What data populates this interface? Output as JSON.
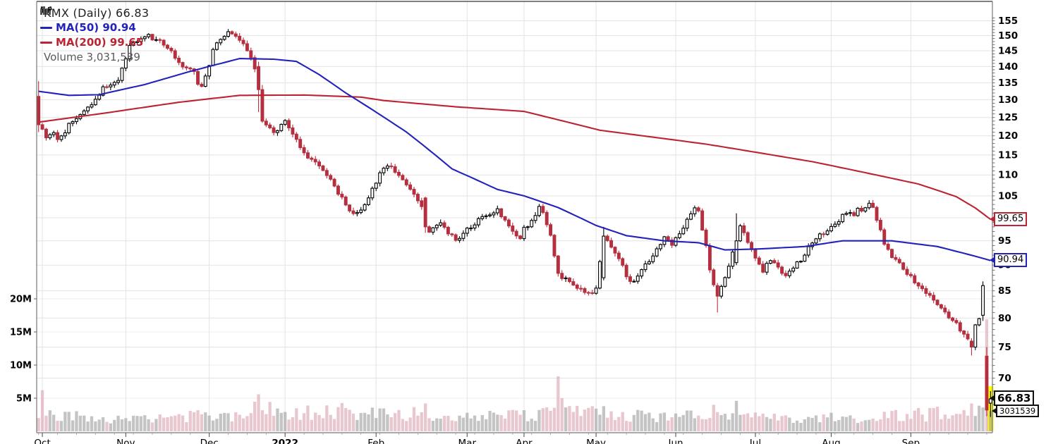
{
  "legend": {
    "title": "KMX (Daily) 66.83",
    "ma50": "MA(50) 90.94",
    "ma200": "MA(200) 99.65",
    "volume": "Volume 3,031,539"
  },
  "callouts": {
    "ma200": "99.65",
    "ma50": "90.94",
    "price": "66.83",
    "volume": "3031539"
  },
  "colors": {
    "up_candle": "#000000",
    "down_candle": "#b52f3f",
    "ma50": "#2323bb",
    "ma200": "#bb2433",
    "volume_up": "#a0a0a0",
    "volume_down": "#dba4b0",
    "grid": "#e3e3e3",
    "axis": "#777777",
    "highlight": "#ffff00",
    "background": "#ffffff"
  },
  "chart_data": {
    "type": "candlestick",
    "symbol": "KMX",
    "timeframe": "Daily",
    "last_price": 66.83,
    "ma50_last": 90.94,
    "ma200_last": 99.65,
    "last_volume": 3031539,
    "num_days": 252,
    "price_axis": {
      "scale": "log",
      "tick_labels": [
        155,
        150,
        145,
        140,
        135,
        130,
        125,
        120,
        115,
        110,
        105,
        95,
        90,
        85,
        80,
        75,
        70
      ],
      "grid_levels": [
        155,
        150,
        145,
        140,
        135,
        130,
        125,
        120,
        115,
        110,
        105,
        100,
        95,
        90,
        85,
        80,
        75,
        70
      ]
    },
    "volume_axis": {
      "tick_labels": [
        "20M",
        "15M",
        "10M",
        "5M"
      ],
      "levels_millions": [
        20,
        15,
        10,
        5
      ]
    },
    "x_axis": {
      "ticks": [
        {
          "label": "Oct",
          "i": 1,
          "bold": false
        },
        {
          "label": "Nov",
          "i": 23,
          "bold": false
        },
        {
          "label": "Dec",
          "i": 45,
          "bold": false
        },
        {
          "label": "2022",
          "i": 65,
          "bold": true
        },
        {
          "label": "Feb",
          "i": 89,
          "bold": false
        },
        {
          "label": "Mar",
          "i": 113,
          "bold": false
        },
        {
          "label": "Apr",
          "i": 128,
          "bold": false
        },
        {
          "label": "May",
          "i": 147,
          "bold": false
        },
        {
          "label": "Jun",
          "i": 168,
          "bold": false
        },
        {
          "label": "Jul",
          "i": 189,
          "bold": false
        },
        {
          "label": "Aug",
          "i": 209,
          "bold": false
        },
        {
          "label": "Sep",
          "i": 230,
          "bold": false
        }
      ]
    },
    "first_open": 131,
    "noise_seed": 11,
    "noise_pct": 0.55,
    "close_anchors": [
      [
        0,
        123
      ],
      [
        1,
        121.5
      ],
      [
        2,
        120
      ],
      [
        4,
        121
      ],
      [
        5,
        119.5
      ],
      [
        7,
        121
      ],
      [
        9,
        124.5
      ],
      [
        11,
        125.5
      ],
      [
        13,
        128
      ],
      [
        15,
        130.5
      ],
      [
        17,
        133.5
      ],
      [
        19,
        135
      ],
      [
        21,
        136
      ],
      [
        22,
        139
      ],
      [
        23,
        143
      ],
      [
        24,
        146
      ],
      [
        25,
        147.5
      ],
      [
        27,
        149
      ],
      [
        29,
        150
      ],
      [
        31,
        148.5
      ],
      [
        33,
        147
      ],
      [
        35,
        145
      ],
      [
        37,
        141
      ],
      [
        39,
        139.5
      ],
      [
        41,
        138
      ],
      [
        42,
        135
      ],
      [
        43,
        134.5
      ],
      [
        44,
        136.5
      ],
      [
        45,
        141
      ],
      [
        46,
        146
      ],
      [
        48,
        149
      ],
      [
        50,
        150.5
      ],
      [
        52,
        149.5
      ],
      [
        53,
        148
      ],
      [
        54,
        147
      ],
      [
        55,
        145
      ],
      [
        56,
        142.5
      ],
      [
        57,
        140
      ],
      [
        58,
        133
      ],
      [
        59,
        124
      ],
      [
        61,
        122
      ],
      [
        63,
        121
      ],
      [
        64,
        122.5
      ],
      [
        65,
        123.5
      ],
      [
        66,
        122
      ],
      [
        67,
        120.5
      ],
      [
        68,
        118.5
      ],
      [
        70,
        115.5
      ],
      [
        72,
        113.5
      ],
      [
        74,
        112
      ],
      [
        76,
        110
      ],
      [
        78,
        107
      ],
      [
        80,
        104.5
      ],
      [
        82,
        102
      ],
      [
        84,
        100.8
      ],
      [
        85,
        101.5
      ],
      [
        86,
        103
      ],
      [
        88,
        106.5
      ],
      [
        90,
        110
      ],
      [
        92,
        112.8
      ],
      [
        93,
        112
      ],
      [
        94,
        110.5
      ],
      [
        96,
        108.5
      ],
      [
        98,
        106.5
      ],
      [
        100,
        104
      ],
      [
        101,
        102
      ],
      [
        102,
        98
      ],
      [
        103,
        97
      ],
      [
        104,
        98
      ],
      [
        106,
        99
      ],
      [
        108,
        97
      ],
      [
        110,
        95.5
      ],
      [
        112,
        96.5
      ],
      [
        114,
        98
      ],
      [
        116,
        99.5
      ],
      [
        118,
        100.5
      ],
      [
        120,
        101
      ],
      [
        121,
        102
      ],
      [
        123,
        99.5
      ],
      [
        125,
        97.5
      ],
      [
        127,
        95.5
      ],
      [
        128,
        97.5
      ],
      [
        130,
        99
      ],
      [
        132,
        102.5
      ],
      [
        134,
        99
      ],
      [
        135,
        96
      ],
      [
        136,
        91.5
      ],
      [
        137,
        88.5
      ],
      [
        139,
        87
      ],
      [
        141,
        86
      ],
      [
        143,
        85
      ],
      [
        145,
        84.3
      ],
      [
        146,
        84.8
      ],
      [
        147,
        85.5
      ],
      [
        149,
        96
      ],
      [
        151,
        93.5
      ],
      [
        153,
        91
      ],
      [
        155,
        88
      ],
      [
        157,
        86.5
      ],
      [
        159,
        89
      ],
      [
        161,
        91
      ],
      [
        163,
        93
      ],
      [
        165,
        95.5
      ],
      [
        167,
        94.5
      ],
      [
        169,
        96
      ],
      [
        171,
        99.5
      ],
      [
        173,
        102
      ],
      [
        174,
        101
      ],
      [
        175,
        97
      ],
      [
        176,
        93.5
      ],
      [
        177,
        89.5
      ],
      [
        178,
        86
      ],
      [
        179,
        84
      ],
      [
        180,
        85.5
      ],
      [
        182,
        89.5
      ],
      [
        184,
        95
      ],
      [
        185,
        98.5
      ],
      [
        187,
        95
      ],
      [
        189,
        91.5
      ],
      [
        191,
        89
      ],
      [
        193,
        91
      ],
      [
        195,
        89.5
      ],
      [
        197,
        88
      ],
      [
        199,
        89.5
      ],
      [
        201,
        91
      ],
      [
        203,
        93.5
      ],
      [
        205,
        95.5
      ],
      [
        207,
        96.5
      ],
      [
        209,
        98
      ],
      [
        211,
        99.5
      ],
      [
        213,
        101
      ],
      [
        215,
        101
      ],
      [
        216,
        102
      ],
      [
        217,
        101
      ],
      [
        218,
        102.5
      ],
      [
        219,
        103
      ],
      [
        220,
        102.5
      ],
      [
        221,
        99.5
      ],
      [
        222,
        97
      ],
      [
        223,
        94
      ],
      [
        225,
        92
      ],
      [
        227,
        90
      ],
      [
        229,
        88.5
      ],
      [
        231,
        86.5
      ],
      [
        233,
        85.5
      ],
      [
        235,
        84
      ],
      [
        237,
        82.5
      ],
      [
        239,
        81
      ],
      [
        241,
        79.5
      ],
      [
        243,
        78
      ],
      [
        245,
        76
      ],
      [
        246,
        75
      ],
      [
        247,
        78.5
      ],
      [
        248,
        80
      ],
      [
        249,
        86
      ],
      [
        250,
        65.2
      ],
      [
        251,
        66.83
      ]
    ],
    "candle_overrides": [
      {
        "i": 0,
        "o": 131,
        "h": 135.5,
        "l": 121,
        "c": 123
      },
      {
        "i": 58,
        "o": 140,
        "h": 141.5,
        "l": 126.5,
        "c": 133
      },
      {
        "i": 102,
        "o": 104.5,
        "h": 104.8,
        "l": 96.7,
        "c": 98
      },
      {
        "i": 149,
        "o": 87.5,
        "h": 98,
        "l": 87,
        "c": 96
      },
      {
        "i": 179,
        "o": 86,
        "h": 86.5,
        "l": 81,
        "c": 84
      },
      {
        "i": 184,
        "o": 90.5,
        "h": 101,
        "l": 90,
        "c": 95
      },
      {
        "i": 246,
        "o": 76,
        "h": 76.5,
        "l": 73.6,
        "c": 75
      },
      {
        "i": 249,
        "o": 80.5,
        "h": 86.8,
        "l": 79.5,
        "c": 86
      },
      {
        "i": 250,
        "o": 73.5,
        "h": 75,
        "l": 64.3,
        "c": 65.2
      },
      {
        "i": 251,
        "o": 66.2,
        "h": 68,
        "l": 64.2,
        "c": 66.83
      }
    ],
    "volume_anchors_millions": [
      [
        0,
        3
      ],
      [
        4,
        2.6
      ],
      [
        10,
        2.1
      ],
      [
        20,
        1.9
      ],
      [
        35,
        2
      ],
      [
        50,
        2.3
      ],
      [
        58,
        3.2
      ],
      [
        66,
        2.6
      ],
      [
        80,
        2.9
      ],
      [
        92,
        2.4
      ],
      [
        104,
        2.6
      ],
      [
        118,
        2.1
      ],
      [
        132,
        2.3
      ],
      [
        140,
        2.8
      ],
      [
        152,
        2.4
      ],
      [
        164,
        2
      ],
      [
        174,
        2.6
      ],
      [
        186,
        2.4
      ],
      [
        198,
        1.7
      ],
      [
        210,
        1.9
      ],
      [
        222,
        2.1
      ],
      [
        234,
        2.4
      ],
      [
        244,
        3
      ],
      [
        249,
        3.4
      ],
      [
        251,
        3.03
      ]
    ],
    "volume_overrides_millions": {
      "1": 6.2,
      "58": 5.6,
      "102": 4.2,
      "137": 8.3,
      "138": 5,
      "149": 3.8,
      "178": 4,
      "184": 4.6,
      "246": 4.2,
      "250": 16.9,
      "251": 3.03
    },
    "ma50_anchors": [
      [
        0,
        132.5
      ],
      [
        8,
        131.3
      ],
      [
        16,
        131.5
      ],
      [
        28,
        134.5
      ],
      [
        40,
        138.5
      ],
      [
        53,
        142.5
      ],
      [
        62,
        142.3
      ],
      [
        68,
        141.6
      ],
      [
        74,
        137.5
      ],
      [
        81,
        132
      ],
      [
        89,
        126.5
      ],
      [
        97,
        121
      ],
      [
        109,
        111.5
      ],
      [
        121,
        106.5
      ],
      [
        128,
        105
      ],
      [
        137,
        102.3
      ],
      [
        147,
        98.3
      ],
      [
        155,
        96.1
      ],
      [
        165,
        95
      ],
      [
        174,
        94.6
      ],
      [
        181,
        93.1
      ],
      [
        190,
        93.3
      ],
      [
        202,
        93.8
      ],
      [
        212,
        95
      ],
      [
        225,
        95
      ],
      [
        237,
        93.8
      ],
      [
        247,
        91.8
      ],
      [
        251,
        90.94
      ]
    ],
    "ma200_anchors": [
      [
        0,
        123.7
      ],
      [
        18,
        126.3
      ],
      [
        37,
        129.3
      ],
      [
        53,
        131.3
      ],
      [
        70,
        131.4
      ],
      [
        85,
        130.8
      ],
      [
        91,
        129.8
      ],
      [
        110,
        128
      ],
      [
        128,
        126.7
      ],
      [
        148,
        121.5
      ],
      [
        176,
        117.8
      ],
      [
        204,
        113.3
      ],
      [
        232,
        107.8
      ],
      [
        242,
        104.8
      ],
      [
        247,
        102.2
      ],
      [
        251,
        99.65
      ]
    ],
    "highlight_last_day": true
  }
}
